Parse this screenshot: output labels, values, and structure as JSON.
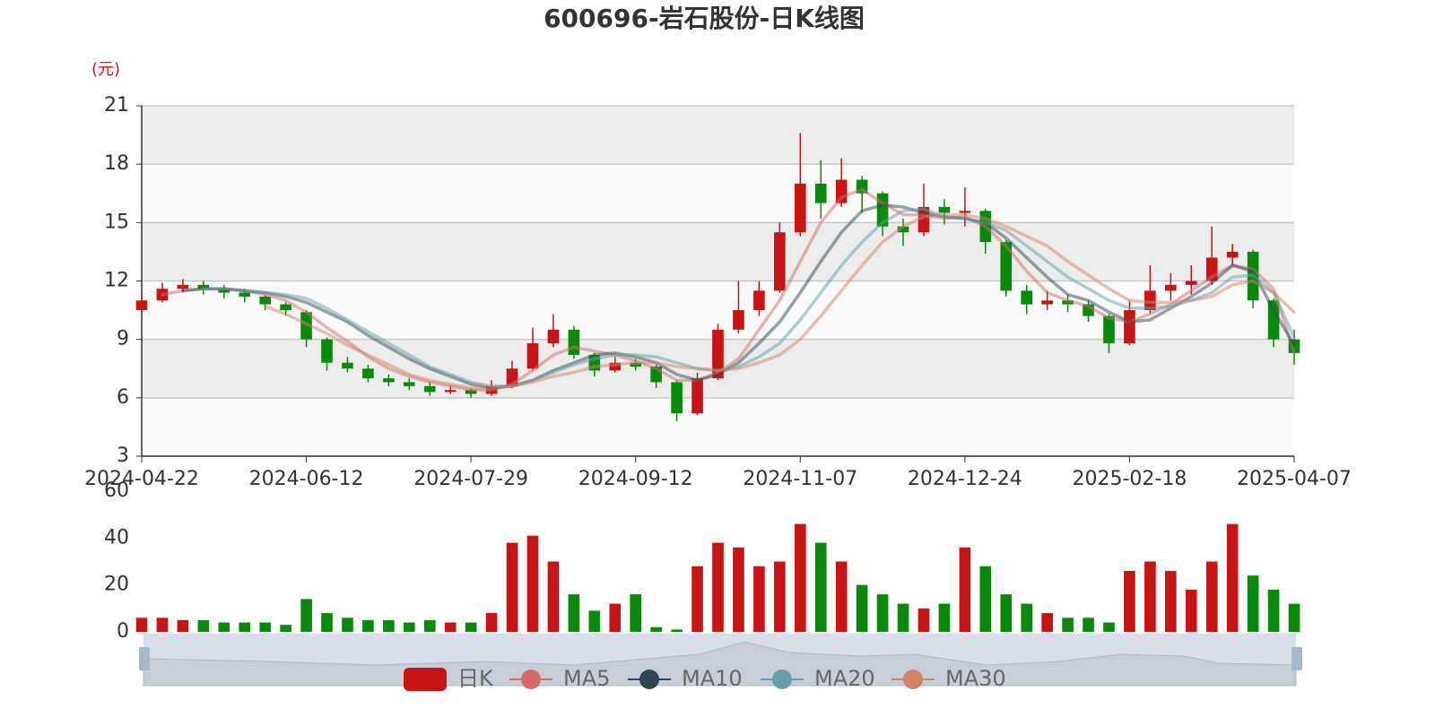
{
  "chart_data": [
    {
      "type": "candlestick",
      "title": "600696-岩石股份-日K线图",
      "ylabel": "(元)",
      "categories": [
        "2024-04-22",
        null,
        null,
        null,
        null,
        null,
        null,
        null,
        "2024-06-12",
        null,
        null,
        null,
        null,
        null,
        null,
        null,
        "2024-07-29",
        null,
        null,
        null,
        null,
        null,
        null,
        null,
        "2024-09-12",
        null,
        null,
        null,
        null,
        null,
        null,
        null,
        "2024-11-07",
        null,
        null,
        null,
        null,
        null,
        null,
        null,
        "2024-12-24",
        null,
        null,
        null,
        null,
        null,
        null,
        null,
        "2025-02-18",
        null,
        null,
        null,
        null,
        null,
        null,
        null,
        "2025-04-07"
      ],
      "ylim": [
        3,
        21
      ],
      "yticks": [
        3,
        6,
        9,
        12,
        15,
        18,
        21
      ],
      "grid": true,
      "series": [
        {
          "name": "日K",
          "type": "candlestick",
          "color": "#c81414",
          "down_color": "#0a8a0a",
          "values": [
            [
              10.5,
              11.0,
              10.4,
              11.3
            ],
            [
              11.0,
              11.6,
              10.9,
              11.9
            ],
            [
              11.6,
              11.8,
              11.4,
              12.1
            ],
            [
              11.8,
              11.6,
              11.3,
              12.0
            ],
            [
              11.6,
              11.4,
              11.1,
              11.8
            ],
            [
              11.4,
              11.2,
              10.9,
              11.6
            ],
            [
              11.2,
              10.8,
              10.5,
              11.3
            ],
            [
              10.8,
              10.5,
              10.2,
              10.9
            ],
            [
              10.4,
              9.0,
              8.6,
              10.5
            ],
            [
              9.0,
              7.8,
              7.4,
              9.1
            ],
            [
              7.8,
              7.5,
              7.3,
              8.1
            ],
            [
              7.5,
              7.0,
              6.8,
              7.7
            ],
            [
              7.0,
              6.8,
              6.6,
              7.2
            ],
            [
              6.8,
              6.6,
              6.4,
              7.0
            ],
            [
              6.6,
              6.3,
              6.1,
              6.8
            ],
            [
              6.3,
              6.4,
              6.2,
              6.6
            ],
            [
              6.4,
              6.2,
              6.0,
              6.5
            ],
            [
              6.2,
              6.6,
              6.1,
              6.9
            ],
            [
              6.6,
              7.5,
              6.5,
              7.9
            ],
            [
              7.5,
              8.8,
              7.4,
              9.6
            ],
            [
              8.8,
              9.5,
              8.6,
              10.3
            ],
            [
              9.5,
              8.2,
              8.0,
              9.7
            ],
            [
              8.2,
              7.4,
              7.1,
              8.3
            ],
            [
              7.4,
              7.8,
              7.3,
              8.1
            ],
            [
              7.8,
              7.6,
              7.4,
              8.0
            ],
            [
              7.6,
              6.8,
              6.5,
              7.7
            ],
            [
              6.8,
              5.2,
              4.8,
              6.9
            ],
            [
              5.2,
              7.0,
              5.1,
              7.3
            ],
            [
              7.0,
              9.5,
              6.9,
              9.8
            ],
            [
              9.5,
              10.5,
              9.3,
              12.0
            ],
            [
              10.5,
              11.5,
              10.2,
              12.0
            ],
            [
              11.5,
              14.5,
              11.4,
              15.0
            ],
            [
              14.5,
              17.0,
              14.3,
              19.6
            ],
            [
              17.0,
              16.0,
              15.2,
              18.2
            ],
            [
              16.0,
              17.2,
              15.8,
              18.3
            ],
            [
              17.2,
              16.5,
              15.5,
              17.4
            ],
            [
              16.5,
              14.8,
              14.3,
              16.6
            ],
            [
              14.8,
              14.5,
              13.8,
              15.2
            ],
            [
              14.5,
              15.8,
              14.3,
              17.0
            ],
            [
              15.8,
              15.5,
              14.9,
              16.2
            ],
            [
              15.5,
              15.6,
              14.8,
              16.8
            ],
            [
              15.6,
              14.0,
              13.4,
              15.7
            ],
            [
              14.0,
              11.5,
              11.2,
              14.1
            ],
            [
              11.5,
              10.8,
              10.3,
              11.8
            ],
            [
              10.8,
              11.0,
              10.5,
              11.5
            ],
            [
              11.0,
              10.8,
              10.4,
              11.3
            ],
            [
              10.8,
              10.2,
              9.9,
              11.0
            ],
            [
              10.2,
              8.8,
              8.3,
              10.3
            ],
            [
              8.8,
              10.5,
              8.7,
              11.0
            ],
            [
              10.5,
              11.5,
              10.3,
              12.8
            ],
            [
              11.5,
              11.8,
              11.0,
              12.4
            ],
            [
              11.8,
              12.0,
              11.3,
              12.8
            ],
            [
              12.0,
              13.2,
              11.8,
              14.8
            ],
            [
              13.2,
              13.5,
              12.8,
              13.9
            ],
            [
              13.5,
              11.0,
              10.6,
              13.6
            ],
            [
              11.0,
              9.0,
              8.6,
              11.1
            ],
            [
              9.0,
              8.3,
              7.7,
              9.5
            ]
          ]
        },
        {
          "name": "MA5",
          "type": "line",
          "color": "#d46a6a",
          "values": [
            null,
            11.3,
            11.5,
            11.6,
            11.6,
            11.5,
            11.3,
            11.0,
            10.4,
            9.6,
            8.9,
            8.1,
            7.5,
            7.1,
            6.8,
            6.6,
            6.4,
            6.4,
            6.7,
            7.4,
            8.2,
            8.6,
            8.4,
            8.2,
            7.9,
            7.5,
            6.9,
            6.9,
            7.3,
            8.0,
            9.5,
            11.0,
            13.0,
            15.0,
            16.3,
            16.7,
            16.0,
            15.4,
            15.4,
            15.2,
            15.3,
            14.8,
            13.8,
            12.5,
            11.4,
            11.0,
            10.7,
            10.1,
            9.9,
            10.3,
            10.8,
            11.5,
            12.2,
            12.8,
            12.6,
            11.6,
            8.3
          ]
        },
        {
          "name": "MA10",
          "type": "line",
          "color": "#2f4554",
          "values": [
            null,
            null,
            11.5,
            11.6,
            11.6,
            11.5,
            11.4,
            11.2,
            10.9,
            10.4,
            9.9,
            9.2,
            8.6,
            8.0,
            7.5,
            7.1,
            6.7,
            6.5,
            6.6,
            6.9,
            7.4,
            7.8,
            8.2,
            8.3,
            8.1,
            7.8,
            7.2,
            6.9,
            7.2,
            7.8,
            8.8,
            9.9,
            11.4,
            13.0,
            14.5,
            15.6,
            15.9,
            15.8,
            15.5,
            15.3,
            15.2,
            15.0,
            14.2,
            13.2,
            12.2,
            11.3,
            11.0,
            10.4,
            9.9,
            10.0,
            10.6,
            11.2,
            11.9,
            12.8,
            12.5,
            10.5,
            8.7
          ]
        },
        {
          "name": "MA20",
          "type": "line",
          "color": "#61a0a8",
          "values": [
            null,
            null,
            null,
            11.6,
            11.6,
            11.5,
            11.4,
            11.3,
            11.1,
            10.6,
            10.0,
            9.4,
            8.8,
            8.2,
            7.6,
            7.2,
            6.8,
            6.6,
            6.6,
            6.9,
            7.3,
            7.7,
            8.0,
            8.2,
            8.2,
            8.1,
            7.8,
            7.5,
            7.4,
            7.6,
            8.1,
            8.8,
            10.0,
            11.4,
            12.8,
            14.0,
            15.0,
            15.6,
            15.7,
            15.3,
            15.2,
            15.0,
            14.6,
            13.8,
            13.0,
            12.2,
            11.6,
            11.0,
            10.6,
            10.6,
            10.7,
            11.0,
            11.4,
            12.2,
            12.3,
            11.4,
            9.1
          ]
        },
        {
          "name": "MA30",
          "type": "line",
          "color": "#d48265",
          "values": [
            null,
            null,
            null,
            null,
            null,
            null,
            10.7,
            10.3,
            9.8,
            9.3,
            8.7,
            8.2,
            7.7,
            7.2,
            6.9,
            6.7,
            6.5,
            6.5,
            6.6,
            6.8,
            7.1,
            7.3,
            7.6,
            7.7,
            7.8,
            7.8,
            7.6,
            7.5,
            7.4,
            7.5,
            7.8,
            8.2,
            9.0,
            10.2,
            11.5,
            12.8,
            14.0,
            14.8,
            15.3,
            15.4,
            15.4,
            15.2,
            14.8,
            14.3,
            13.8,
            13.0,
            12.3,
            11.6,
            11.0,
            10.9,
            10.9,
            11.0,
            11.2,
            11.8,
            12.0,
            11.4,
            10.4
          ]
        }
      ]
    },
    {
      "type": "bar",
      "ylim": [
        0,
        60
      ],
      "yticks": [
        0,
        20,
        40,
        60
      ],
      "values": [
        6,
        6,
        5,
        5,
        4,
        4,
        4,
        3,
        14,
        8,
        6,
        5,
        5,
        4,
        5,
        4,
        4,
        8,
        38,
        41,
        30,
        16,
        9,
        12,
        16,
        2,
        1,
        28,
        38,
        36,
        28,
        30,
        46,
        38,
        30,
        20,
        16,
        12,
        10,
        12,
        36,
        28,
        16,
        12,
        8,
        6,
        6,
        4,
        26,
        30,
        26,
        18,
        30,
        46,
        24,
        18,
        12
      ]
    }
  ]
}
